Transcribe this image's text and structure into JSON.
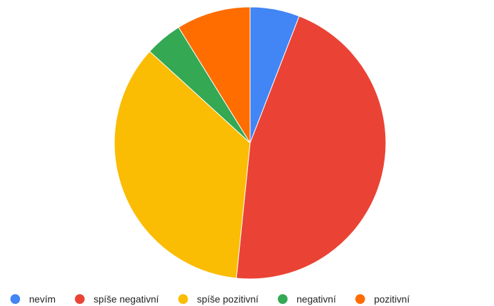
{
  "chart_data": {
    "type": "pie",
    "title": "",
    "categories": [
      "nevím",
      "spíše negativní",
      "spíše pozitivní",
      "negativní",
      "pozitivní"
    ],
    "values": [
      6.0,
      46.6,
      35.8,
      4.5,
      9.0
    ],
    "colors": [
      "#4285f4",
      "#ea4335",
      "#fbbc04",
      "#34a853",
      "#ff6d01"
    ],
    "start_angle_deg": 0,
    "direction": "clockwise",
    "legend_position": "bottom"
  }
}
